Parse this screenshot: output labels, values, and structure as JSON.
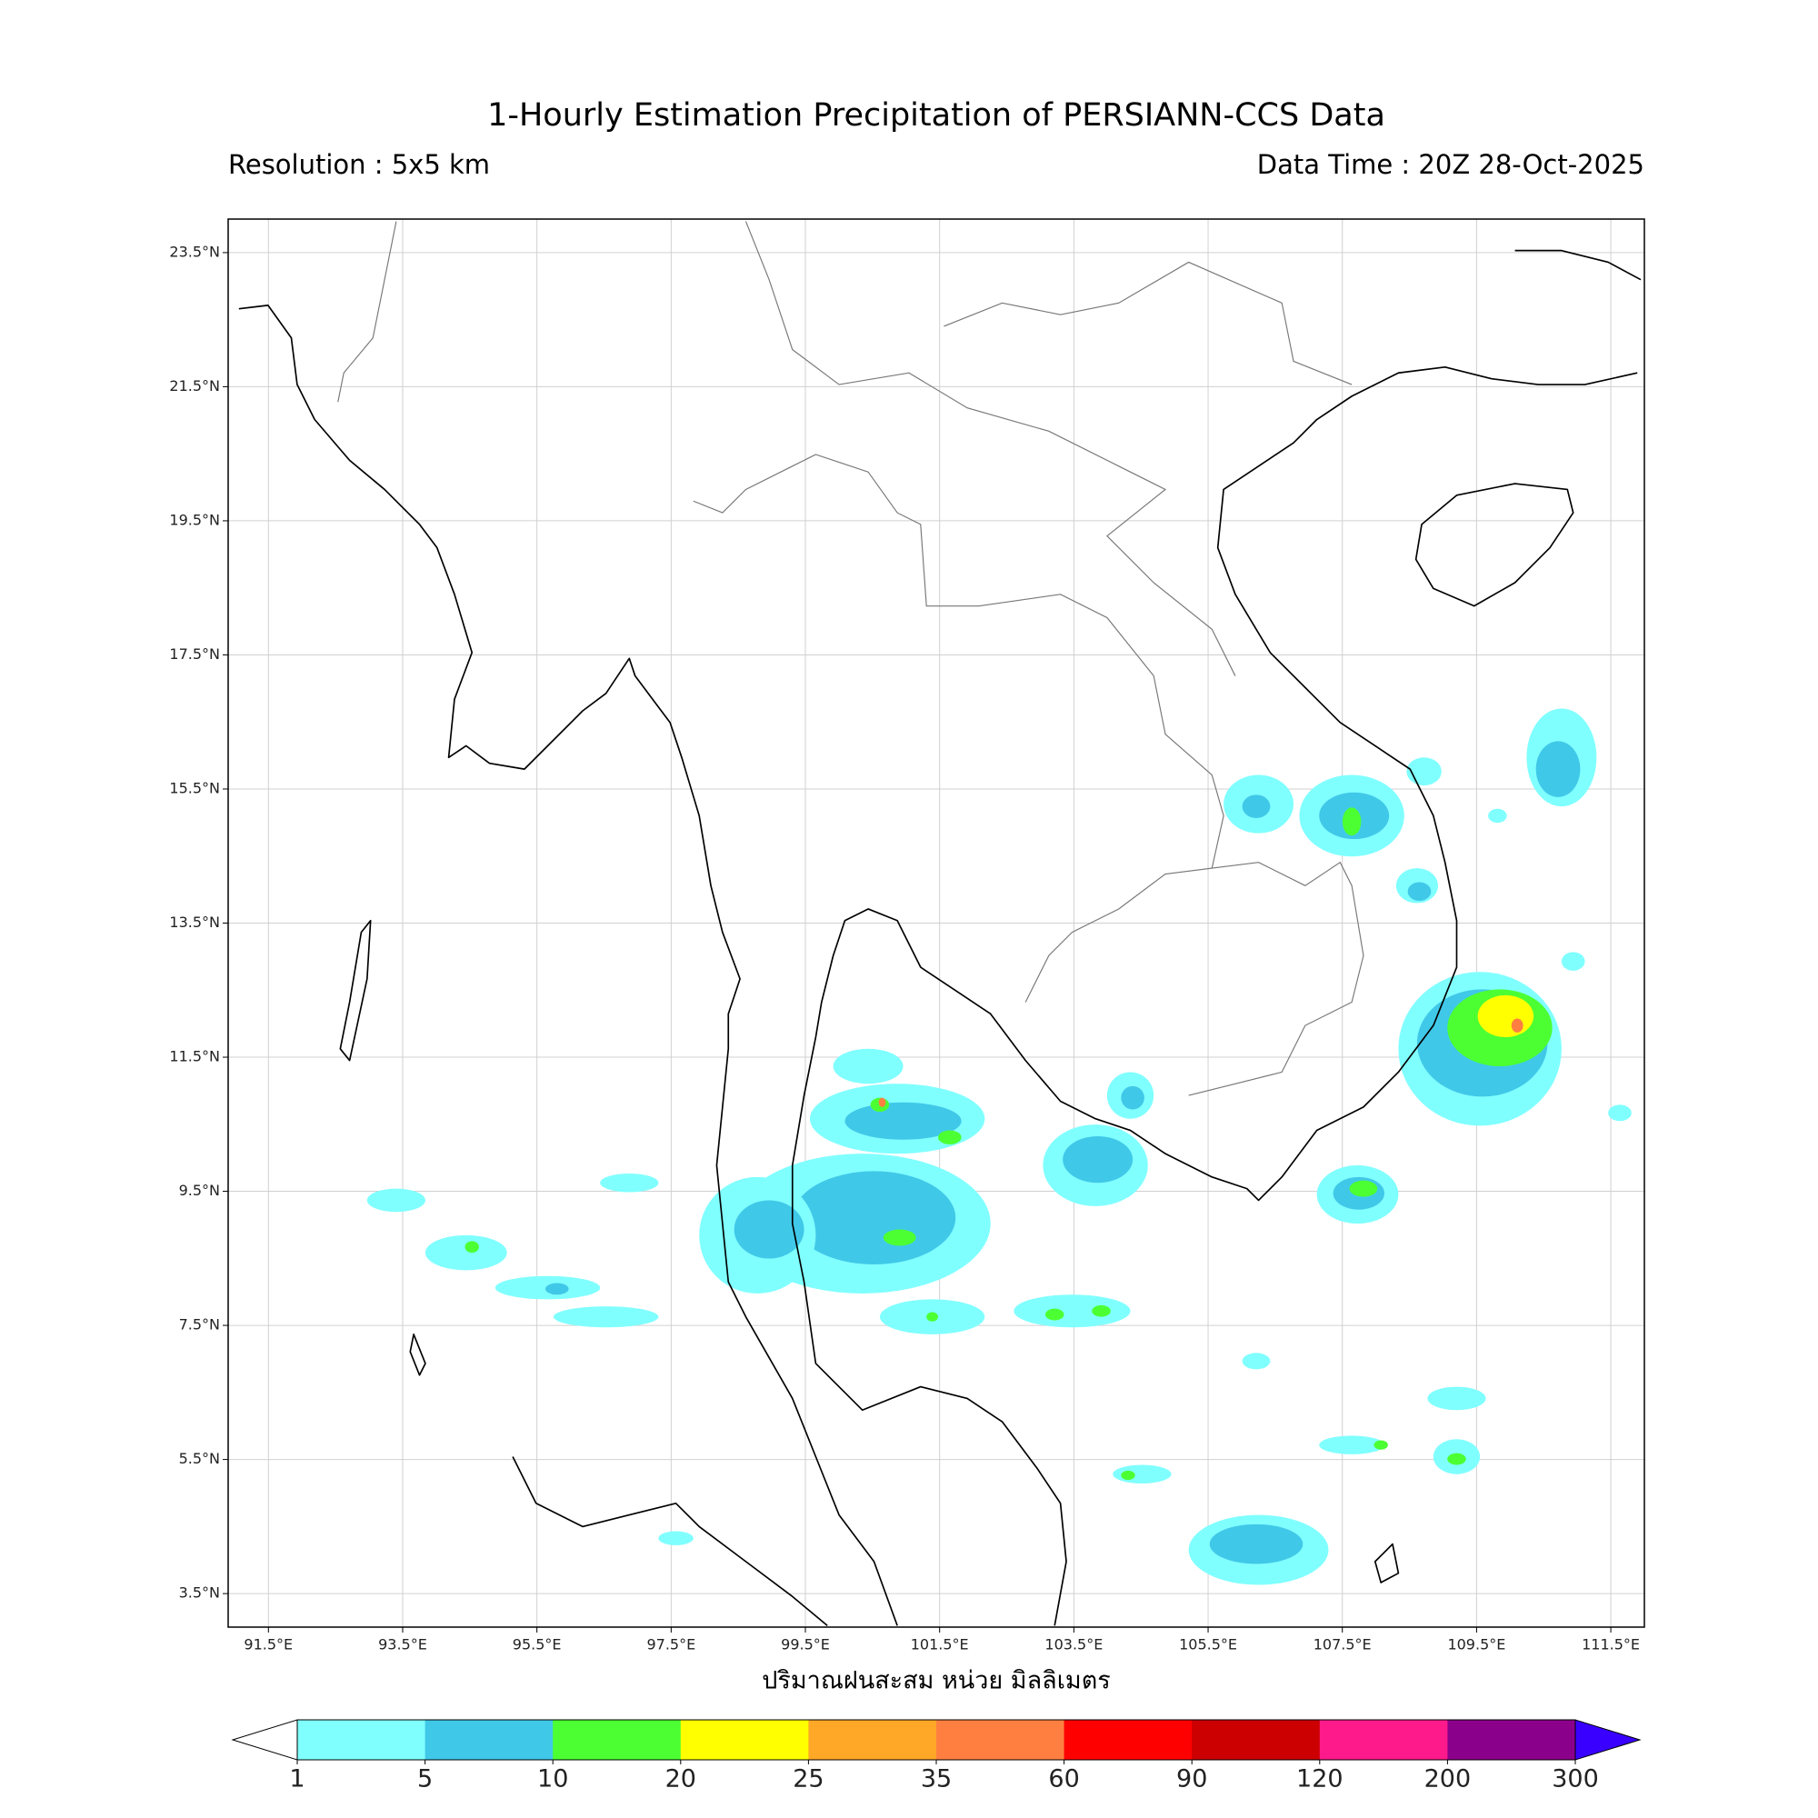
{
  "header": {
    "title": "1-Hourly Estimation Precipitation of PERSIANN-CCS Data",
    "resolution": "Resolution : 5x5 km",
    "data_time": "Data Time : 20Z 28-Oct-2025"
  },
  "map": {
    "xlim": [
      90.9,
      112.0
    ],
    "ylim": [
      3.0,
      24.0
    ],
    "xticks": [
      {
        "value": 91.5,
        "label": "91.5°E"
      },
      {
        "value": 93.5,
        "label": "93.5°E"
      },
      {
        "value": 95.5,
        "label": "95.5°E"
      },
      {
        "value": 97.5,
        "label": "97.5°E"
      },
      {
        "value": 99.5,
        "label": "99.5°E"
      },
      {
        "value": 101.5,
        "label": "101.5°E"
      },
      {
        "value": 103.5,
        "label": "103.5°E"
      },
      {
        "value": 105.5,
        "label": "105.5°E"
      },
      {
        "value": 107.5,
        "label": "107.5°E"
      },
      {
        "value": 109.5,
        "label": "109.5°E"
      },
      {
        "value": 111.5,
        "label": "111.5°E"
      }
    ],
    "yticks": [
      {
        "value": 3.5,
        "label": "3.5°N"
      },
      {
        "value": 5.5,
        "label": "5.5°N"
      },
      {
        "value": 7.5,
        "label": "7.5°N"
      },
      {
        "value": 9.5,
        "label": "9.5°N"
      },
      {
        "value": 11.5,
        "label": "11.5°N"
      },
      {
        "value": 13.5,
        "label": "13.5°N"
      },
      {
        "value": 15.5,
        "label": "15.5°N"
      },
      {
        "value": 17.5,
        "label": "17.5°N"
      },
      {
        "value": 19.5,
        "label": "19.5°N"
      },
      {
        "value": 21.5,
        "label": "21.5°N"
      },
      {
        "value": 23.5,
        "label": "23.5°N"
      }
    ],
    "grid": true
  },
  "colorbar": {
    "label": "ปริมาณฝนสะสม หน่วย มิลลิเมตร",
    "ticks": [
      1,
      5,
      10,
      20,
      25,
      35,
      60,
      90,
      120,
      200,
      300
    ],
    "colors": [
      "#80ffff",
      "#40c8e8",
      "#4cff33",
      "#ffff00",
      "#ffa726",
      "#ff7f41",
      "#ff0000",
      "#cc0000",
      "#ff1a8c",
      "#8b008b"
    ],
    "under_color": "#ffffff",
    "over_color": "#3a00ff"
  }
}
